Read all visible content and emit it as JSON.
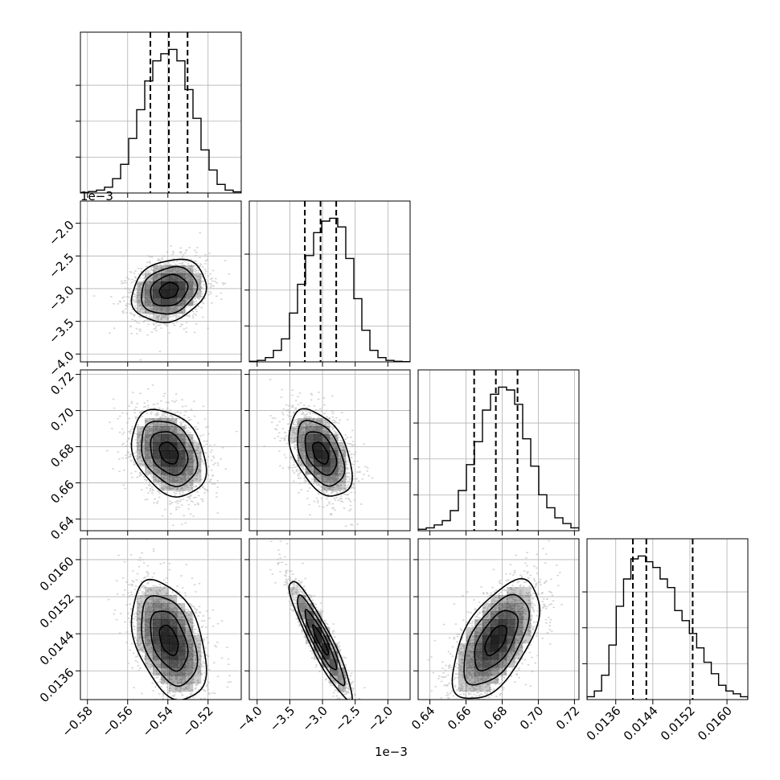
{
  "chart_data": {
    "type": "corner",
    "parameters": [
      {
        "ticks": [
          -0.58,
          -0.56,
          -0.54,
          -0.52
        ],
        "tick_labels": [
          "−0.58",
          "−0.56",
          "−0.54",
          "−0.52"
        ],
        "range": [
          -0.5835,
          -0.5035
        ],
        "quantiles": [
          -0.5487,
          -0.5395,
          -0.5302
        ],
        "offset_label": ""
      },
      {
        "ticks": [
          -4.0,
          -3.5,
          -3.0,
          -2.5,
          -2.0
        ],
        "tick_labels": [
          "−4.0",
          "−3.5",
          "−3.0",
          "−2.5",
          "−2.0"
        ],
        "range": [
          -4.12,
          -1.66
        ],
        "quantiles": [
          -3.27,
          -3.03,
          -2.79
        ],
        "offset_label": "1e−3"
      },
      {
        "ticks": [
          0.64,
          0.66,
          0.68,
          0.7,
          0.72
        ],
        "tick_labels": [
          "0.64",
          "0.66",
          "0.68",
          "0.70",
          "0.72"
        ],
        "range": [
          0.6335,
          0.7225
        ],
        "quantiles": [
          0.6645,
          0.6765,
          0.6885
        ],
        "offset_label": ""
      },
      {
        "ticks": [
          0.0136,
          0.0144,
          0.0152,
          0.016
        ],
        "tick_labels": [
          "0.0136",
          "0.0144",
          "0.0152",
          "0.0160"
        ],
        "range": [
          0.01298,
          0.01645
        ],
        "quantiles": [
          0.01397,
          0.01426,
          0.01526
        ],
        "offset_label": ""
      }
    ],
    "histograms": [
      [
        0.004,
        0.01,
        0.02,
        0.04,
        0.1,
        0.2,
        0.38,
        0.58,
        0.78,
        0.92,
        0.97,
        1.0,
        0.92,
        0.72,
        0.52,
        0.3,
        0.16,
        0.06,
        0.02,
        0.008
      ],
      [
        0.004,
        0.01,
        0.03,
        0.08,
        0.16,
        0.34,
        0.54,
        0.74,
        0.9,
        0.98,
        1.0,
        0.94,
        0.72,
        0.44,
        0.22,
        0.08,
        0.03,
        0.01,
        0.004,
        0.002
      ],
      [
        0.01,
        0.02,
        0.04,
        0.07,
        0.14,
        0.28,
        0.46,
        0.62,
        0.84,
        0.95,
        1.0,
        0.98,
        0.88,
        0.64,
        0.45,
        0.25,
        0.16,
        0.09,
        0.05,
        0.02
      ],
      [
        0.02,
        0.06,
        0.17,
        0.38,
        0.65,
        0.84,
        0.98,
        1.0,
        0.96,
        0.92,
        0.84,
        0.78,
        0.62,
        0.55,
        0.46,
        0.36,
        0.26,
        0.18,
        0.1,
        0.06,
        0.04,
        0.02
      ]
    ],
    "correlations": [
      [
        1.0,
        0.2,
        -0.3,
        -0.4
      ],
      [
        0.2,
        1.0,
        -0.45,
        -0.92
      ],
      [
        -0.3,
        -0.45,
        1.0,
        0.58
      ],
      [
        -0.4,
        -0.92,
        0.58,
        1.0
      ]
    ],
    "xlabel_offset": "1e−3",
    "grid": true,
    "colors": {
      "samples": "#b0b0b0",
      "contour": "#000000",
      "grid": "#b0b0b0",
      "quantile_line": "#000000"
    }
  }
}
